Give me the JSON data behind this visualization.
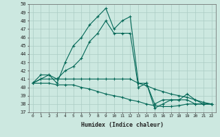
{
  "xlabel": "Humidex (Indice chaleur)",
  "ylabel": "",
  "xlim": [
    -0.5,
    22.5
  ],
  "ylim": [
    37,
    50
  ],
  "bg_color": "#cce8e0",
  "grid_color": "#aaccc4",
  "line_color": "#006655",
  "x": [
    0,
    1,
    2,
    3,
    4,
    5,
    6,
    7,
    8,
    9,
    10,
    11,
    12,
    13,
    14,
    15,
    16,
    17,
    18,
    19,
    20,
    21,
    22
  ],
  "line1": [
    40.5,
    41.5,
    41.5,
    40.5,
    43.0,
    45.0,
    46.0,
    47.5,
    48.5,
    49.5,
    47.0,
    48.0,
    48.5,
    40.5,
    40.5,
    38.0,
    38.5,
    38.5,
    38.5,
    39.2,
    38.5,
    38.0,
    38.0
  ],
  "line2": [
    40.5,
    41.0,
    41.5,
    41.0,
    42.0,
    42.5,
    43.5,
    45.5,
    46.5,
    48.0,
    46.5,
    46.5,
    46.5,
    40.0,
    40.5,
    37.5,
    38.0,
    38.5,
    38.5,
    38.5,
    38.0,
    38.0,
    38.0
  ],
  "line3": [
    40.5,
    41.0,
    41.0,
    41.0,
    41.0,
    41.0,
    41.0,
    41.0,
    41.0,
    41.0,
    41.0,
    41.0,
    41.0,
    40.5,
    40.2,
    39.8,
    39.5,
    39.2,
    39.0,
    38.8,
    38.5,
    38.2,
    38.0
  ],
  "line4": [
    40.5,
    40.5,
    40.5,
    40.3,
    40.3,
    40.3,
    40.0,
    39.8,
    39.5,
    39.2,
    39.0,
    38.8,
    38.5,
    38.3,
    38.0,
    37.8,
    37.7,
    37.7,
    37.8,
    38.0,
    38.0,
    38.0,
    38.0
  ]
}
